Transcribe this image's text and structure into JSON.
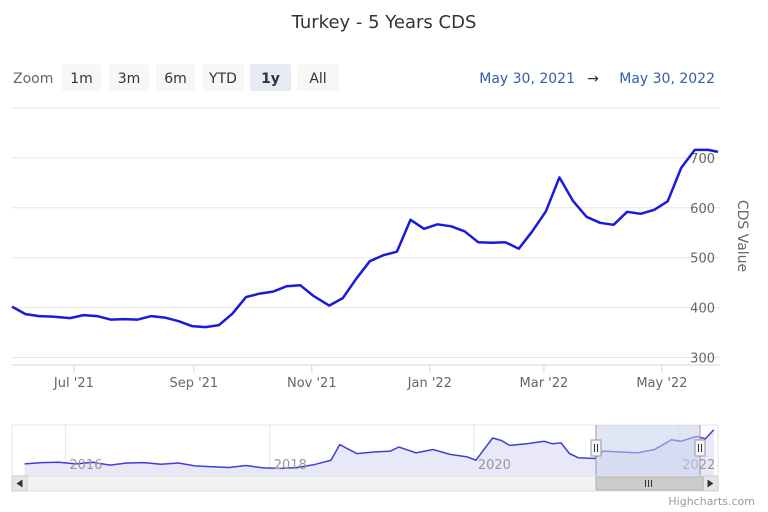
{
  "page": {
    "title": "Turkey - 5 Years CDS",
    "credits": "Highcharts.com"
  },
  "range_selector": {
    "zoom_label": "Zoom",
    "buttons": [
      "1m",
      "3m",
      "6m",
      "YTD",
      "1y",
      "All"
    ],
    "selected": "1y",
    "from_date": "May 30, 2021",
    "arrow": "→",
    "to_date": "May 30, 2022"
  },
  "colors": {
    "series": "#1a1adb",
    "navigator_series": "#3f3fd6",
    "navigator_fill": "#e8e8f8",
    "navigator_mask": "#c9d1ee",
    "grid": "#e6e6e6",
    "axis_text": "#333333",
    "date_text": "#335cad",
    "button_bg": "#f7f7f7",
    "button_selected_bg": "#e6ebf5"
  },
  "chart_data": {
    "type": "line",
    "title": "Turkey - 5 Years CDS",
    "ylabel": "CDS Value",
    "ylim": [
      285,
      800
    ],
    "yticks": [
      300,
      400,
      500,
      600,
      700
    ],
    "xlim": [
      "2021-05-30",
      "2022-05-30"
    ],
    "xtick_labels": [
      {
        "date": "2021-07-01",
        "label": "Jul '21"
      },
      {
        "date": "2021-09-01",
        "label": "Sep '21"
      },
      {
        "date": "2021-11-01",
        "label": "Nov '21"
      },
      {
        "date": "2022-01-01",
        "label": "Jan '22"
      },
      {
        "date": "2022-03-01",
        "label": "Mar '22"
      },
      {
        "date": "2022-05-01",
        "label": "May '22"
      }
    ],
    "grid": true,
    "legend": "none",
    "series": [
      {
        "points": [
          [
            "2021-05-30",
            402
          ],
          [
            "2021-06-06",
            387
          ],
          [
            "2021-06-13",
            383
          ],
          [
            "2021-06-20",
            382
          ],
          [
            "2021-06-29",
            379
          ],
          [
            "2021-07-06",
            385
          ],
          [
            "2021-07-13",
            383
          ],
          [
            "2021-07-20",
            376
          ],
          [
            "2021-07-27",
            377
          ],
          [
            "2021-08-03",
            376
          ],
          [
            "2021-08-10",
            383
          ],
          [
            "2021-08-17",
            380
          ],
          [
            "2021-08-24",
            373
          ],
          [
            "2021-08-31",
            363
          ],
          [
            "2021-09-07",
            361
          ],
          [
            "2021-09-14",
            365
          ],
          [
            "2021-09-21",
            388
          ],
          [
            "2021-09-28",
            421
          ],
          [
            "2021-10-05",
            428
          ],
          [
            "2021-10-12",
            432
          ],
          [
            "2021-10-19",
            443
          ],
          [
            "2021-10-26",
            445
          ],
          [
            "2021-11-02",
            423
          ],
          [
            "2021-11-10",
            404
          ],
          [
            "2021-11-17",
            419
          ],
          [
            "2021-11-24",
            458
          ],
          [
            "2021-12-01",
            493
          ],
          [
            "2021-12-08",
            505
          ],
          [
            "2021-12-15",
            512
          ],
          [
            "2021-12-22",
            576
          ],
          [
            "2021-12-29",
            558
          ],
          [
            "2022-01-05",
            567
          ],
          [
            "2022-01-12",
            563
          ],
          [
            "2022-01-19",
            553
          ],
          [
            "2022-01-26",
            531
          ],
          [
            "2022-02-02",
            530
          ],
          [
            "2022-02-09",
            531
          ],
          [
            "2022-02-16",
            518
          ],
          [
            "2022-02-23",
            553
          ],
          [
            "2022-03-02",
            593
          ],
          [
            "2022-03-09",
            661
          ],
          [
            "2022-03-16",
            614
          ],
          [
            "2022-03-23",
            582
          ],
          [
            "2022-03-30",
            570
          ],
          [
            "2022-04-06",
            566
          ],
          [
            "2022-04-13",
            592
          ],
          [
            "2022-04-20",
            588
          ],
          [
            "2022-04-27",
            596
          ],
          [
            "2022-05-04",
            613
          ],
          [
            "2022-05-11",
            680
          ],
          [
            "2022-05-18",
            716
          ],
          [
            "2022-05-25",
            716
          ],
          [
            "2022-05-30",
            712
          ]
        ]
      }
    ]
  },
  "navigator": {
    "year_labels": [
      "2016",
      "2018",
      "2020",
      "2022"
    ],
    "handle_glyph": "⁞",
    "scroll_left_glyph": "◂",
    "scroll_right_glyph": "▸",
    "scroll_thumb_glyph": "lll",
    "series": [
      [
        "2015-08",
        0.75
      ],
      [
        "2015-10",
        0.9
      ],
      [
        "2015-12",
        0.95
      ],
      [
        "2016-02",
        0.75
      ],
      [
        "2016-04",
        0.95
      ],
      [
        "2016-06",
        0.6
      ],
      [
        "2016-08",
        0.85
      ],
      [
        "2016-10",
        0.9
      ],
      [
        "2016-12",
        0.7
      ],
      [
        "2017-02",
        0.85
      ],
      [
        "2017-04",
        0.5
      ],
      [
        "2017-06",
        0.4
      ],
      [
        "2017-08",
        0.3
      ],
      [
        "2017-10",
        0.55
      ],
      [
        "2017-12",
        0.25
      ],
      [
        "2018-02",
        0.2
      ],
      [
        "2018-04",
        0.3
      ],
      [
        "2018-06",
        0.65
      ],
      [
        "2018-08",
        1.2
      ],
      [
        "2018-09",
        3.1
      ],
      [
        "2018-11",
        2.0
      ],
      [
        "2019-01",
        2.2
      ],
      [
        "2019-03",
        2.3
      ],
      [
        "2019-04",
        2.8
      ],
      [
        "2019-06",
        2.1
      ],
      [
        "2019-08",
        2.5
      ],
      [
        "2019-10",
        1.9
      ],
      [
        "2019-12",
        1.6
      ],
      [
        "2020-01",
        1.2
      ],
      [
        "2020-03",
        3.9
      ],
      [
        "2020-04",
        3.6
      ],
      [
        "2020-05",
        3.0
      ],
      [
        "2020-07",
        3.2
      ],
      [
        "2020-09",
        3.5
      ],
      [
        "2020-10",
        3.2
      ],
      [
        "2020-11",
        3.3
      ],
      [
        "2020-12",
        2.0
      ],
      [
        "2021-01",
        1.5
      ],
      [
        "2021-03",
        1.4
      ],
      [
        "2021-04",
        2.3
      ],
      [
        "2021-06",
        2.2
      ],
      [
        "2021-08",
        2.1
      ],
      [
        "2021-10",
        2.5
      ],
      [
        "2021-12",
        3.7
      ],
      [
        "2022-01",
        3.5
      ],
      [
        "2022-03",
        4.1
      ],
      [
        "2022-04",
        3.8
      ],
      [
        "2022-05",
        4.9
      ]
    ]
  }
}
